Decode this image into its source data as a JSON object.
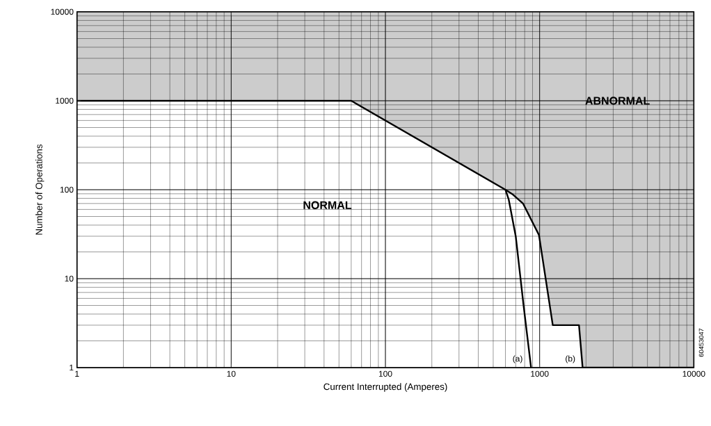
{
  "chart_data": {
    "type": "line",
    "xlabel": "Current Interrupted (Amperes)",
    "ylabel": "Number of Operations",
    "log": "xy",
    "grid": true,
    "xlim": [
      1,
      10000
    ],
    "ylim": [
      1,
      10000
    ],
    "xticks": [
      1,
      10,
      100,
      1000,
      10000
    ],
    "yticks": [
      1,
      10,
      100,
      1000,
      10000
    ],
    "series": [
      {
        "color": "#000000",
        "x": [
          1,
          60,
          600,
          672,
          780,
          990,
          1217,
          1800,
          1900,
          10000
        ],
        "values": [
          1000,
          1000,
          100,
          88,
          70,
          31,
          3,
          3,
          1,
          1
        ],
        "lower": [
          1000,
          1000,
          100,
          88,
          70,
          31,
          3,
          3,
          1,
          1
        ],
        "upper": [
          10000,
          10000,
          10000,
          10000,
          10000,
          10000,
          10000,
          10000,
          10000,
          10000
        ]
      },
      {
        "color": "#000000",
        "x": [
          600,
          630,
          700,
          787,
          880
        ],
        "values": [
          100,
          78,
          30,
          5,
          1
        ]
      }
    ],
    "annotations": [
      "ABNORMAL",
      "NORMAL",
      "(a)",
      "(b)",
      "60453047"
    ]
  }
}
